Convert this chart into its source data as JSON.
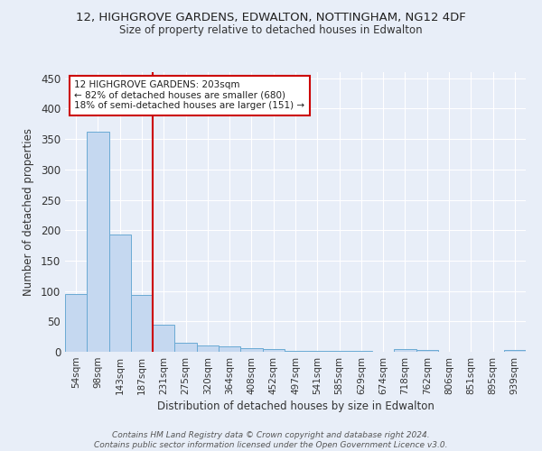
{
  "title_line1": "12, HIGHGROVE GARDENS, EDWALTON, NOTTINGHAM, NG12 4DF",
  "title_line2": "Size of property relative to detached houses in Edwalton",
  "xlabel": "Distribution of detached houses by size in Edwalton",
  "ylabel": "Number of detached properties",
  "bar_labels": [
    "54sqm",
    "98sqm",
    "143sqm",
    "187sqm",
    "231sqm",
    "275sqm",
    "320sqm",
    "364sqm",
    "408sqm",
    "452sqm",
    "497sqm",
    "541sqm",
    "585sqm",
    "629sqm",
    "674sqm",
    "718sqm",
    "762sqm",
    "806sqm",
    "851sqm",
    "895sqm",
    "939sqm"
  ],
  "bar_values": [
    95,
    362,
    193,
    93,
    45,
    15,
    11,
    9,
    6,
    4,
    2,
    2,
    1,
    1,
    0,
    5,
    3,
    0,
    0,
    0,
    3
  ],
  "bar_color": "#c5d8f0",
  "bar_edge_color": "#6aaad4",
  "bg_color": "#e8eef8",
  "grid_color": "#ffffff",
  "vline_x": 3.5,
  "vline_color": "#cc0000",
  "annotation_text": "12 HIGHGROVE GARDENS: 203sqm\n← 82% of detached houses are smaller (680)\n18% of semi-detached houses are larger (151) →",
  "annotation_box_color": "#ffffff",
  "annotation_box_edge": "#cc0000",
  "footnote": "Contains HM Land Registry data © Crown copyright and database right 2024.\nContains public sector information licensed under the Open Government Licence v3.0.",
  "ylim": [
    0,
    460
  ],
  "yticks": [
    0,
    50,
    100,
    150,
    200,
    250,
    300,
    350,
    400,
    450
  ]
}
